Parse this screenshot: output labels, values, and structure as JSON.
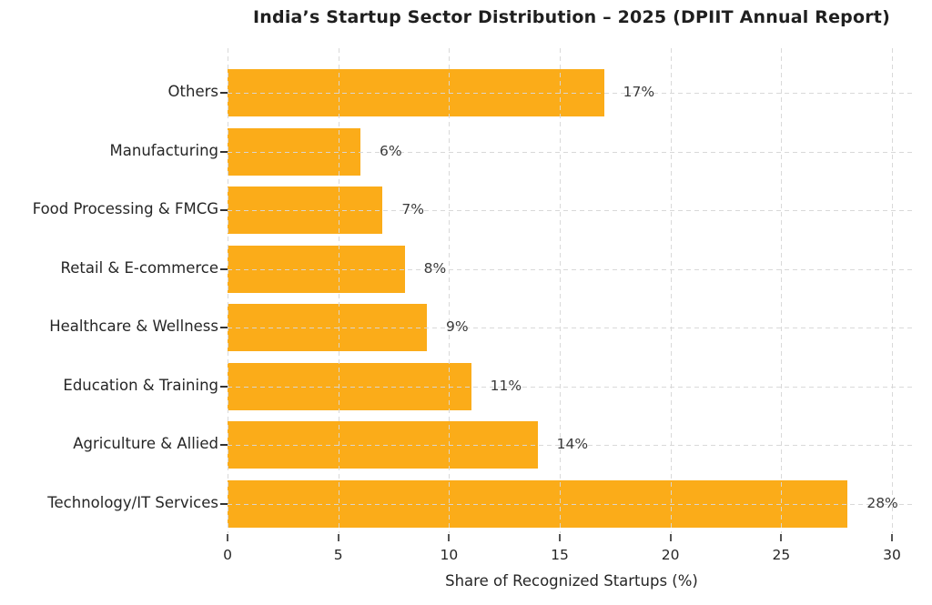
{
  "chart_data": {
    "type": "bar",
    "orientation": "horizontal",
    "title": "India’s Startup Sector Distribution – 2025 (DPIIT Annual Report)",
    "xlabel": "Share of Recognized Startups (%)",
    "categories": [
      "Others",
      "Manufacturing",
      "Food Processing & FMCG",
      "Retail & E-commerce",
      "Healthcare & Wellness",
      "Education & Training",
      "Agriculture & Allied",
      "Technology/IT Services"
    ],
    "values": [
      17,
      6,
      7,
      8,
      9,
      11,
      14,
      28
    ],
    "value_labels": [
      "17%",
      "6%",
      "7%",
      "8%",
      "9%",
      "11%",
      "14%",
      "28%"
    ],
    "xlim": [
      0,
      30
    ],
    "xticks": [
      0,
      5,
      10,
      15,
      20,
      25,
      30
    ],
    "grid": "dashed gridlines on both axes, drawn over bars",
    "legend": "none",
    "spines": "none",
    "bar_color": "#fbac19",
    "text_color": "#262626",
    "value_label_color": "#3a3a3a",
    "gridline_color": "#d7d7d7",
    "background_color": "#ffffff"
  }
}
